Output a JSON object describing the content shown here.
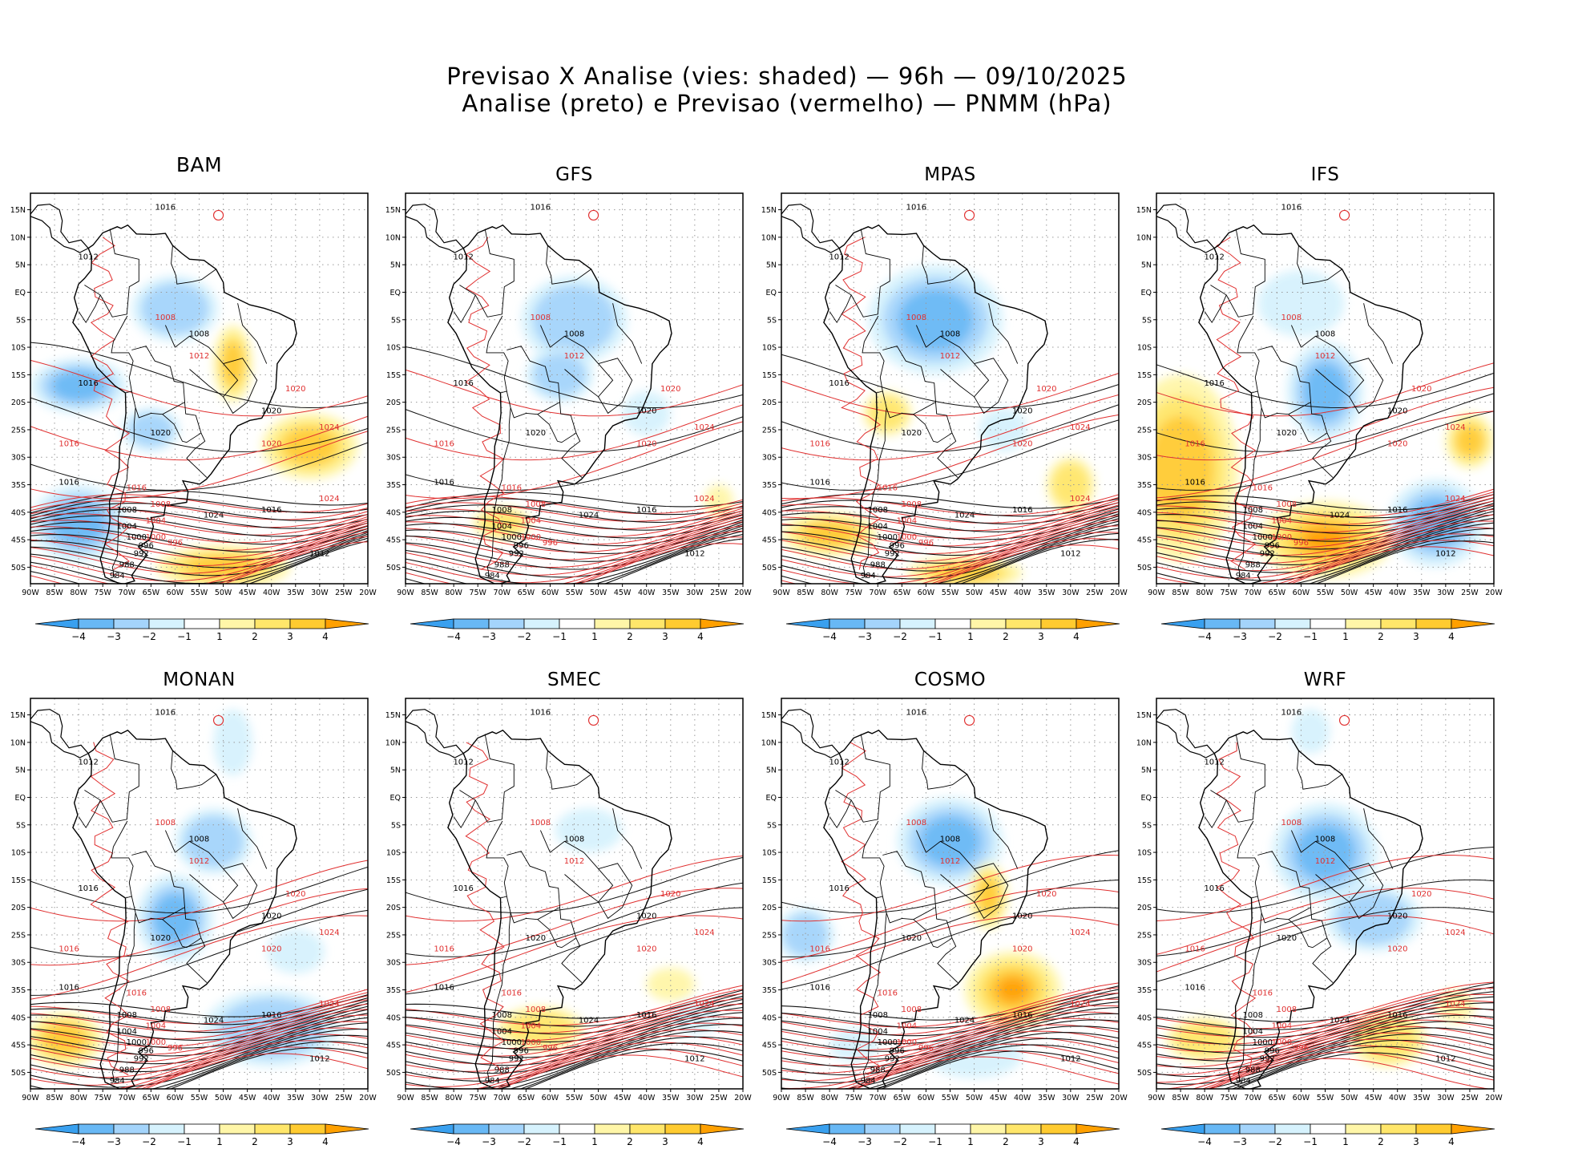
{
  "title_line1": "Previsao X Analise (vies: shaded) — 96h — 09/10/2025",
  "title_line2": "Analise (preto) e Previsao (vermelho) — PNMM (hPa)",
  "panels": [
    {
      "name": "BAM",
      "labels_black": [
        "1016",
        "1012",
        "1016",
        "1020",
        "1024",
        "1016",
        "1008",
        "1004",
        "1000",
        "996",
        "992",
        "988",
        "984",
        "1020",
        "1016",
        "1012",
        "1008"
      ],
      "labels_red": [
        "1008",
        "1012",
        "1016",
        "1020",
        "1024",
        "1016",
        "1008",
        "1004",
        "1000",
        "996",
        "1020",
        "1024"
      ]
    },
    {
      "name": "GFS",
      "labels_black": [
        "1016",
        "1012",
        "1016",
        "1020",
        "1024",
        "1016",
        "1008",
        "1004",
        "1000",
        "996",
        "992",
        "988",
        "984",
        "1020",
        "1016",
        "1012",
        "1008"
      ],
      "labels_red": [
        "1008",
        "1012",
        "1016",
        "1020",
        "1024",
        "1016",
        "1008",
        "1004",
        "1000",
        "996",
        "1020",
        "1024"
      ]
    },
    {
      "name": "MPAS",
      "labels_black": [
        "1016",
        "1012",
        "1016",
        "1020",
        "1024",
        "1016",
        "1008",
        "1004",
        "1000",
        "996",
        "992",
        "988",
        "984",
        "1020",
        "1016",
        "1012",
        "1008"
      ],
      "labels_red": [
        "1008",
        "1012",
        "1016",
        "1020",
        "1024",
        "1016",
        "1008",
        "1004",
        "1000",
        "996",
        "1020",
        "1024"
      ]
    },
    {
      "name": "IFS",
      "labels_black": [
        "1016",
        "1012",
        "1016",
        "1020",
        "1024",
        "1016",
        "1008",
        "1004",
        "1000",
        "996",
        "992",
        "988",
        "984",
        "1020",
        "1016",
        "1012",
        "1008"
      ],
      "labels_red": [
        "1008",
        "1012",
        "1016",
        "1020",
        "1024",
        "1016",
        "1008",
        "1004",
        "1000",
        "996",
        "1020",
        "1024"
      ]
    },
    {
      "name": "MONAN",
      "labels_black": [
        "1016",
        "1012",
        "1016",
        "1020",
        "1024",
        "1016",
        "1008",
        "1004",
        "1000",
        "996",
        "992",
        "988",
        "984",
        "1020",
        "1016",
        "1012",
        "1008"
      ],
      "labels_red": [
        "1008",
        "1012",
        "1016",
        "1020",
        "1024",
        "1016",
        "1008",
        "1004",
        "1000",
        "996",
        "1020",
        "1024"
      ]
    },
    {
      "name": "SMEC",
      "labels_black": [
        "1016",
        "1012",
        "1016",
        "1020",
        "1024",
        "1016",
        "1008",
        "1004",
        "1000",
        "996",
        "992",
        "988",
        "984",
        "1020",
        "1016",
        "1012",
        "1008"
      ],
      "labels_red": [
        "1008",
        "1012",
        "1016",
        "1020",
        "1024",
        "1016",
        "1008",
        "1004",
        "1000",
        "996",
        "1020",
        "1024"
      ]
    },
    {
      "name": "COSMO",
      "labels_black": [
        "1016",
        "1012",
        "1016",
        "1020",
        "1024",
        "1016",
        "1008",
        "1004",
        "1000",
        "996",
        "992",
        "988",
        "984",
        "1020",
        "1016",
        "1012",
        "1008"
      ],
      "labels_red": [
        "1008",
        "1012",
        "1016",
        "1020",
        "1024",
        "1016",
        "1008",
        "1004",
        "1000",
        "996",
        "1020",
        "1024"
      ]
    },
    {
      "name": "WRF",
      "labels_black": [
        "1016",
        "1012",
        "1016",
        "1020",
        "1024",
        "1016",
        "1008",
        "1004",
        "1000",
        "996",
        "992",
        "988",
        "984",
        "1020",
        "1016",
        "1012",
        "1008"
      ],
      "labels_red": [
        "1008",
        "1012",
        "1016",
        "1020",
        "1024",
        "1016",
        "1008",
        "1004",
        "1000",
        "996",
        "1020",
        "1024"
      ]
    }
  ],
  "lon_ticks": [
    "90W",
    "85W",
    "80W",
    "75W",
    "70W",
    "65W",
    "60W",
    "55W",
    "50W",
    "45W",
    "40W",
    "35W",
    "30W",
    "25W",
    "20W"
  ],
  "lat_ticks": [
    "15N",
    "10N",
    "5N",
    "EQ",
    "5S",
    "10S",
    "15S",
    "20S",
    "25S",
    "30S",
    "35S",
    "40S",
    "45S",
    "50S"
  ],
  "colorbar": {
    "labels": [
      "−4",
      "−3",
      "−2",
      "−1",
      "1",
      "2",
      "3",
      "4"
    ],
    "colors": [
      "#39a0ef",
      "#68b8f5",
      "#a4d4fb",
      "#d6f2fd",
      "#ffffff",
      "#fff6a8",
      "#ffe66a",
      "#ffcb30",
      "#ffa000"
    ]
  },
  "colors": {
    "analysis_contour": "#000000",
    "forecast_contour": "#e03030",
    "neg_bias": "#4aa6f0",
    "pos_bias": "#ffb020"
  }
}
